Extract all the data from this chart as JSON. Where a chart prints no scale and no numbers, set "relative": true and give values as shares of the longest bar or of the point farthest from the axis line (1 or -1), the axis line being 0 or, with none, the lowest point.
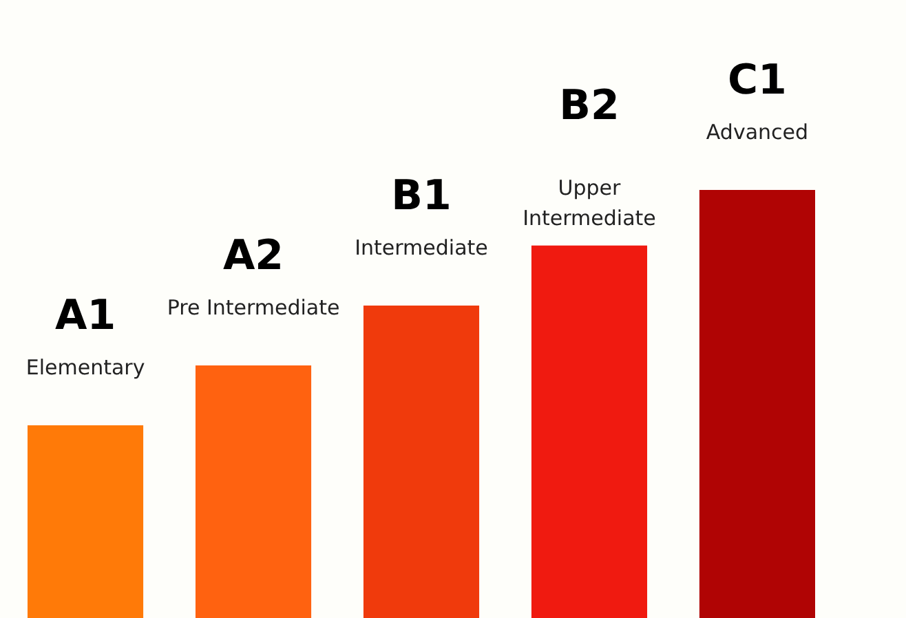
{
  "chart_data": {
    "type": "bar",
    "relative": true,
    "categories": [
      "A1",
      "A2",
      "B1",
      "B2",
      "C1"
    ],
    "values": [
      0.45,
      0.59,
      0.73,
      0.87,
      1
    ],
    "colors": [
      "#ff7a08",
      "#ff6210",
      "#f03a0c",
      "#f01a10",
      "#b00404"
    ],
    "annotations": [
      "Elementary",
      "Pre Intermediate",
      "Intermediate",
      "Upper\nIntermediate",
      "Advanced"
    ]
  }
}
